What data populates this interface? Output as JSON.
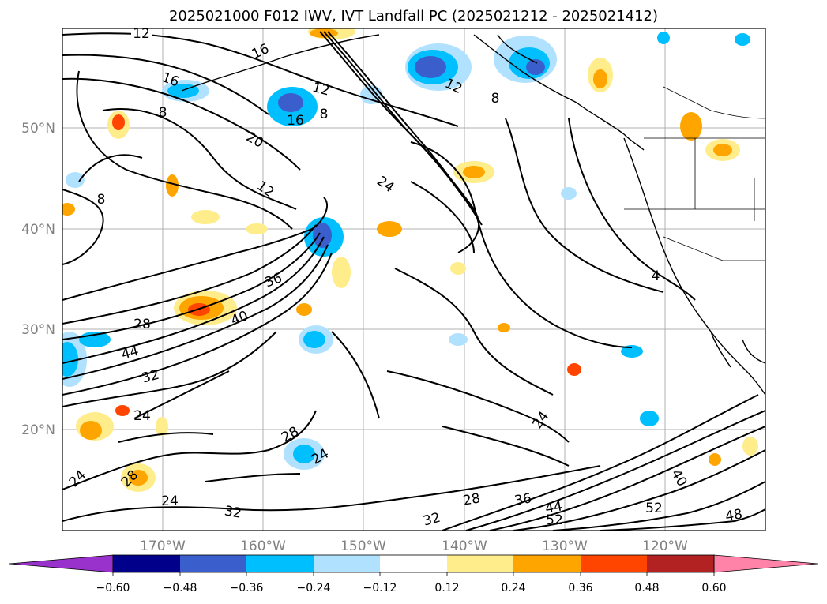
{
  "title": "2025021000 F012 IWV, IVT Landfall PC (2025021212 - 2025021412)",
  "lat_ticks": [
    "50°N",
    "40°N",
    "30°N",
    "20°N"
  ],
  "lon_ticks": [
    "170°W",
    "160°W",
    "150°W",
    "140°W",
    "130°W",
    "120°W"
  ],
  "colorbar": {
    "colors": [
      "#9932CC",
      "#00008B",
      "#3A5FCD",
      "#00BFFF",
      "#B0E2FF",
      "#FFFFFF",
      "#FFEC8B",
      "#FFA500",
      "#FF4500",
      "#B22222",
      "#FF83A8"
    ],
    "labels": [
      "−0.60",
      "−0.48",
      "−0.36",
      "−0.24",
      "−0.12",
      "0.12",
      "0.24",
      "0.36",
      "0.48",
      "0.60"
    ]
  },
  "contour_labels": [
    "12",
    "16",
    "16",
    "12",
    "12",
    "8",
    "8",
    "16",
    "8",
    "20",
    "24",
    "12",
    "8",
    "36",
    "4",
    "28",
    "40",
    "44",
    "32",
    "24",
    "28",
    "24",
    "24",
    "28",
    "24",
    "32",
    "28",
    "36",
    "44",
    "32",
    "52",
    "24",
    "40",
    "52",
    "48"
  ]
}
